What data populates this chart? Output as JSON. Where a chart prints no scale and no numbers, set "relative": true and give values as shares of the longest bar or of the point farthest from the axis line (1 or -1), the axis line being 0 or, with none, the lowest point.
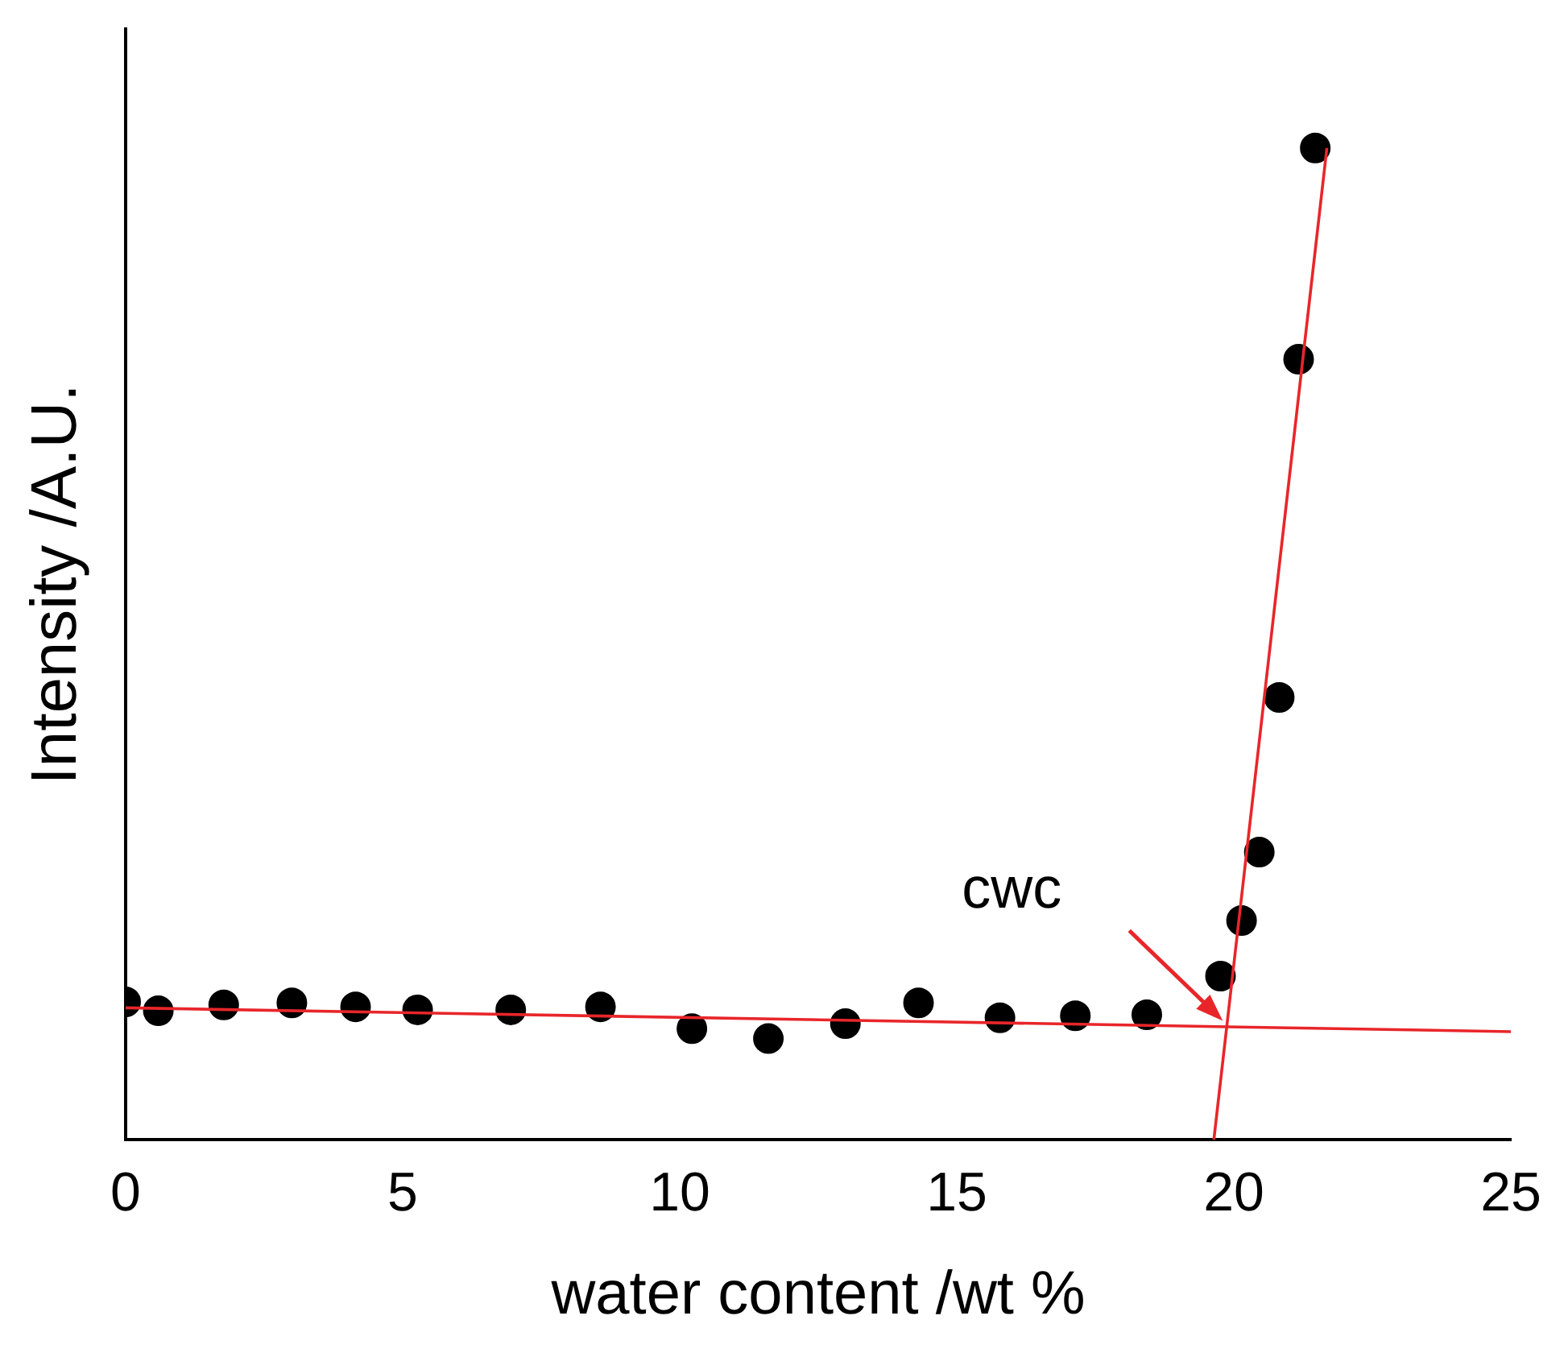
{
  "chart_data": {
    "type": "scatter",
    "xlabel": "water content /wt %",
    "ylabel": "Intensity /A.U.",
    "relative": true,
    "xlim": [
      0,
      25
    ],
    "xticks": [
      0,
      5,
      10,
      15,
      20,
      25
    ],
    "grid": false,
    "legend": false,
    "annotations": [
      {
        "text": "cwc",
        "x": 19.8,
        "y": 0.12
      }
    ],
    "series": [
      {
        "color": "#000000",
        "marker": "circle",
        "x": [
          0,
          0.59,
          1.77,
          3.0,
          4.15,
          5.27,
          6.95,
          8.57,
          10.22,
          11.6,
          12.99,
          14.31,
          15.78,
          17.14,
          18.43,
          19.76,
          20.14,
          20.46,
          20.82,
          21.17,
          21.47
        ],
        "values": [
          0.139,
          0.13,
          0.136,
          0.138,
          0.134,
          0.131,
          0.131,
          0.134,
          0.112,
          0.102,
          0.117,
          0.138,
          0.123,
          0.125,
          0.126,
          0.165,
          0.221,
          0.29,
          0.446,
          0.787,
          1.0
        ]
      },
      {
        "type": "line",
        "marker": "none",
        "color": "#e8262a",
        "x": [
          0,
          25
        ],
        "values": [
          0.133,
          0.109
        ]
      },
      {
        "type": "line",
        "marker": "none",
        "color": "#e8262a",
        "x": [
          19.64,
          21.68
        ],
        "values": [
          0,
          1
        ]
      }
    ]
  }
}
